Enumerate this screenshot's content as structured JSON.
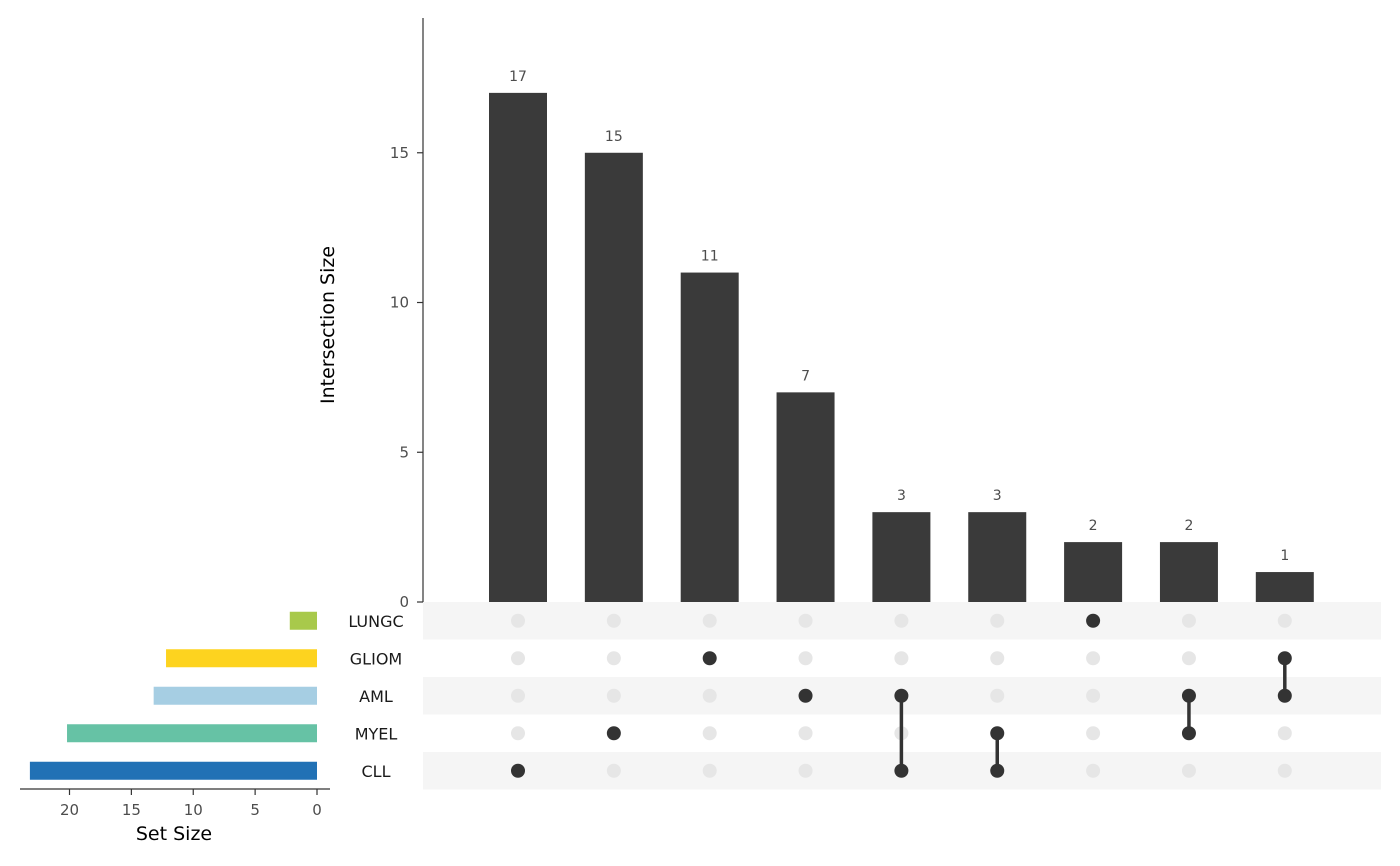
{
  "chart_data": {
    "type": "upset",
    "intersection_axis": {
      "ylabel": "Intersection Size",
      "ylim": [
        0,
        19.5
      ],
      "ticks": [
        0,
        5,
        10,
        15
      ]
    },
    "set_size_axis": {
      "xlabel": "Set Size",
      "xlim": [
        24,
        0
      ],
      "ticks": [
        20,
        15,
        10,
        5,
        0
      ]
    },
    "sets": [
      {
        "name": "LUNGC",
        "size": 2.2,
        "color": "#a8c94b"
      },
      {
        "name": "GLIOM",
        "size": 12.2,
        "color": "#fdd31f"
      },
      {
        "name": "AML",
        "size": 13.2,
        "color": "#a6cee3"
      },
      {
        "name": "MYEL",
        "size": 20.2,
        "color": "#66c2a5"
      },
      {
        "name": "CLL",
        "size": 23.2,
        "color": "#2171b5"
      }
    ],
    "intersections": [
      {
        "sets": [
          "CLL"
        ],
        "value": 17
      },
      {
        "sets": [
          "MYEL"
        ],
        "value": 15
      },
      {
        "sets": [
          "GLIOM"
        ],
        "value": 11
      },
      {
        "sets": [
          "AML"
        ],
        "value": 7
      },
      {
        "sets": [
          "AML",
          "CLL"
        ],
        "value": 3
      },
      {
        "sets": [
          "MYEL",
          "CLL"
        ],
        "value": 3
      },
      {
        "sets": [
          "LUNGC"
        ],
        "value": 2
      },
      {
        "sets": [
          "AML",
          "MYEL"
        ],
        "value": 2
      },
      {
        "sets": [
          "GLIOM",
          "AML"
        ],
        "value": 1
      }
    ],
    "colors": {
      "bar": "#3a3a3a",
      "dot_active": "#333333",
      "dot_inactive": "#e6e6e6",
      "stripe": "#f5f5f5",
      "axis": "#333333"
    }
  }
}
